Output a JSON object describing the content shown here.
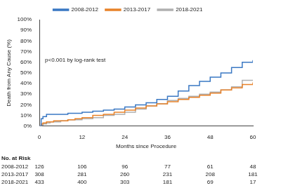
{
  "chart_data": {
    "type": "line",
    "line_style": "step",
    "x_label": "Months since Procedure",
    "y_label": "Death from Any Cause (%)",
    "annotation": "p<0.001 by log-rank test",
    "legend": "top",
    "grid": false,
    "x": [
      0,
      0.5,
      1,
      2,
      3,
      4,
      6,
      8,
      10,
      12,
      15,
      18,
      21,
      24,
      27,
      30,
      33,
      36,
      39,
      42,
      45,
      48,
      51,
      54,
      57,
      60
    ],
    "series": [
      {
        "name": "2008-2012",
        "color": "#3a78c3",
        "values": [
          0,
          7,
          9,
          11,
          11,
          11,
          11,
          12,
          12,
          13,
          14,
          15,
          16,
          18,
          20,
          22,
          25,
          28,
          33,
          38,
          42,
          46,
          50,
          55,
          60,
          62
        ]
      },
      {
        "name": "2013-2017",
        "color": "#e8822a",
        "values": [
          0,
          2,
          3,
          4,
          4,
          5,
          5,
          6,
          7,
          8,
          10,
          11,
          13,
          15,
          17,
          19,
          21,
          23,
          25,
          27,
          29,
          31,
          34,
          36,
          39,
          41
        ]
      },
      {
        "name": "2018-2021",
        "color": "#b0b0b0",
        "values": [
          0,
          1,
          2,
          3,
          4,
          4,
          5,
          6,
          6,
          7,
          8,
          10,
          11,
          13,
          16,
          19,
          21,
          24,
          26,
          28,
          30,
          32,
          34,
          37,
          43,
          43
        ]
      }
    ],
    "xlim": [
      0,
      60
    ],
    "xticks": [
      0,
      12,
      24,
      36,
      48,
      60
    ],
    "ylim": [
      0,
      100
    ],
    "yticks": [
      {
        "value": 0,
        "label": "0%"
      },
      {
        "value": 10,
        "label": "10%"
      },
      {
        "value": 20,
        "label": "20%"
      },
      {
        "value": 30,
        "label": "30%"
      },
      {
        "value": 40,
        "label": "40%"
      },
      {
        "value": 50,
        "label": "50%"
      },
      {
        "value": 60,
        "label": "60%"
      },
      {
        "value": 70,
        "label": "70%"
      },
      {
        "value": 80,
        "label": "80%"
      },
      {
        "value": 90,
        "label": "90%"
      },
      {
        "value": 100,
        "label": "100%"
      }
    ],
    "risk_table": {
      "title": "No. at Risk",
      "x": [
        0,
        12,
        24,
        36,
        48,
        60
      ],
      "rows": [
        {
          "name": "2008-2012",
          "values": [
            126,
            106,
            96,
            77,
            61,
            48
          ]
        },
        {
          "name": "2013-2017",
          "values": [
            308,
            281,
            260,
            231,
            208,
            181
          ]
        },
        {
          "name": "2018-2021",
          "values": [
            433,
            400,
            303,
            181,
            69,
            17
          ]
        }
      ]
    }
  }
}
